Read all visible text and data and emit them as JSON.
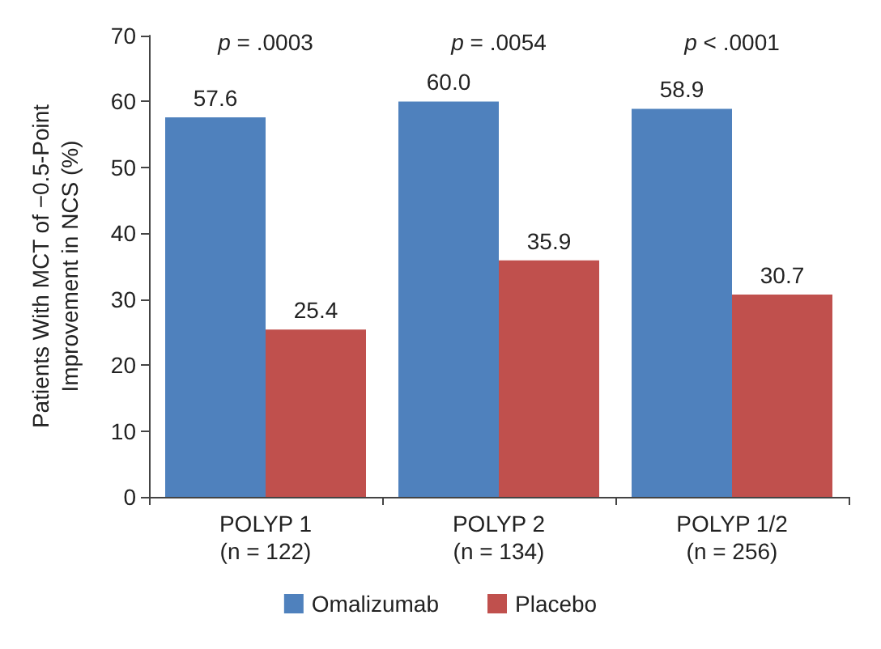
{
  "chart_data": {
    "type": "bar",
    "ylabel": "Patients With MCT of −0.5-Point\nImprovement in NCS (%)",
    "categories": [
      "POLYP 1\n(n = 122)",
      "POLYP 2\n(n = 134)",
      "POLYP 1/2\n(n = 256)"
    ],
    "series": [
      {
        "name": "Omalizumab",
        "color": "#4f81bd",
        "values": [
          57.6,
          60.0,
          58.9
        ]
      },
      {
        "name": "Placebo",
        "color": "#c0504d",
        "values": [
          25.4,
          35.9,
          30.7
        ]
      }
    ],
    "value_labels": [
      [
        "57.6",
        "60.0",
        "58.9"
      ],
      [
        "25.4",
        "35.9",
        "30.7"
      ]
    ],
    "ylim": [
      0,
      70
    ],
    "yticks": [
      0,
      10,
      20,
      30,
      40,
      50,
      60,
      70
    ],
    "grid": false,
    "legend": "bottom",
    "annotations": [
      "p = .0003",
      "p = .0054",
      "p < .0001"
    ]
  }
}
